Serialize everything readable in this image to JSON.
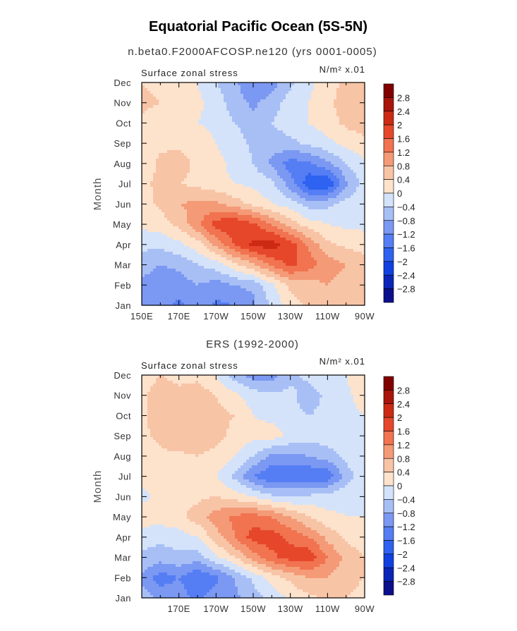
{
  "title": "Equatorial Pacific Ocean (5S-5N)",
  "colormap": {
    "levels": [
      -2.8,
      -2.4,
      -2,
      -1.6,
      -1.2,
      -0.8,
      -0.4,
      0,
      0.4,
      0.8,
      1.2,
      1.6,
      2,
      2.4,
      2.8
    ],
    "labels": [
      "−2.8",
      "−2.4",
      "−2",
      "−1.6",
      "−1.2",
      "−0.8",
      "−0.4",
      "0",
      "0.4",
      "0.8",
      "1.2",
      "1.6",
      "2",
      "2.4",
      "2.8"
    ],
    "colors": [
      "#0c0f8a",
      "#0a25b8",
      "#1040e0",
      "#2e62f0",
      "#557ef4",
      "#7b98f2",
      "#a8bff6",
      "#d4e3fa",
      "#fde2cc",
      "#f8c4a6",
      "#f49a77",
      "#f17350",
      "#e6472b",
      "#cc2a12",
      "#a8150a",
      "#800000"
    ]
  },
  "chart_data": [
    {
      "type": "heatmap",
      "name": "model",
      "subtitle": "n.beta0.F2000AFCOSP.ne120 (yrs 0001-0005)",
      "left_annotation": "Surface zonal stress",
      "right_annotation": "N/m² x.01",
      "ylabel": "Month",
      "xlabel": "",
      "x_tick_labels": [
        "150E",
        "170E",
        "170W",
        "150W",
        "130W",
        "110W",
        "90W"
      ],
      "x_tick_lon": [
        150,
        170,
        190,
        210,
        230,
        250,
        270
      ],
      "y_tick_labels": [
        "Jan",
        "Feb",
        "Mar",
        "Apr",
        "May",
        "Jun",
        "Jul",
        "Aug",
        "Sep",
        "Oct",
        "Nov",
        "Dec"
      ],
      "x_range": [
        150,
        270
      ],
      "y_range": [
        1,
        12
      ],
      "lon_grid": [
        150,
        160,
        170,
        180,
        190,
        200,
        210,
        220,
        230,
        240,
        250,
        260,
        270
      ],
      "month_grid": [
        1,
        2,
        3,
        4,
        5,
        6,
        7,
        8,
        9,
        10,
        11,
        12
      ],
      "values": [
        [
          -0.9,
          -1.0,
          -1.3,
          -0.9,
          -1.3,
          -1.2,
          -0.9,
          -0.3,
          0.2,
          0.5,
          0.6,
          0.5,
          0.4
        ],
        [
          -0.9,
          -1.1,
          -1.0,
          -0.8,
          -1.0,
          -0.8,
          -0.7,
          -0.1,
          0.5,
          0.6,
          0.8,
          0.6,
          0.5
        ],
        [
          -0.6,
          -0.8,
          -0.7,
          -0.4,
          -0.2,
          0.3,
          0.7,
          1.3,
          1.7,
          1.4,
          1.0,
          0.8,
          0.6
        ],
        [
          -0.3,
          -0.3,
          -0.1,
          0.2,
          0.9,
          1.6,
          2.1,
          2.2,
          1.8,
          1.1,
          0.5,
          0.3,
          0.2
        ],
        [
          0.1,
          0.2,
          0.5,
          1.1,
          1.8,
          2.0,
          1.7,
          1.2,
          0.6,
          0.2,
          0.0,
          -0.1,
          -0.1
        ],
        [
          0.2,
          0.5,
          0.8,
          0.9,
          0.9,
          0.6,
          0.3,
          0.0,
          -0.2,
          -0.6,
          -0.5,
          -0.2,
          -0.1
        ],
        [
          0.3,
          0.5,
          0.4,
          0.3,
          0.1,
          0.0,
          -0.1,
          -0.3,
          -1.0,
          -1.9,
          -2.0,
          -0.9,
          -0.2
        ],
        [
          0.1,
          0.5,
          0.6,
          0.3,
          0.1,
          -0.1,
          -0.4,
          -0.9,
          -1.4,
          -1.3,
          -0.9,
          -0.4,
          -0.1
        ],
        [
          0.1,
          0.3,
          0.3,
          0.2,
          0.0,
          -0.2,
          -0.5,
          -0.6,
          -0.5,
          -0.3,
          -0.1,
          0.1,
          0.3
        ],
        [
          0.3,
          0.2,
          0.1,
          0.0,
          -0.1,
          -0.4,
          -0.6,
          -0.4,
          -0.2,
          0.0,
          0.2,
          0.5,
          0.6
        ],
        [
          0.5,
          0.4,
          0.3,
          0.1,
          -0.2,
          -0.6,
          -0.9,
          -0.6,
          -0.2,
          0.0,
          0.3,
          0.6,
          0.6
        ],
        [
          0.4,
          0.3,
          0.2,
          0.0,
          -0.4,
          -0.7,
          -1.2,
          -1.0,
          -0.5,
          -0.1,
          0.2,
          0.5,
          0.4
        ]
      ],
      "colorbar_labels": [
        "2.8",
        "2.4",
        "2",
        "1.6",
        "1.2",
        "0.8",
        "0.4",
        "0",
        "−0.4",
        "−0.8",
        "−1.2",
        "−1.6",
        "−2",
        "−2.4",
        "−2.8"
      ]
    },
    {
      "type": "heatmap",
      "name": "observations",
      "subtitle": "ERS (1992-2000)",
      "left_annotation": "Surface zonal stress",
      "right_annotation": "N/m² x.01",
      "ylabel": "Month",
      "xlabel": "",
      "x_tick_labels": [
        "170E",
        "170W",
        "150W",
        "130W",
        "110W",
        "90W"
      ],
      "x_tick_lon": [
        170,
        190,
        210,
        230,
        250,
        270
      ],
      "y_tick_labels": [
        "Jan",
        "Feb",
        "Mar",
        "Apr",
        "May",
        "Jun",
        "Jul",
        "Aug",
        "Sep",
        "Oct",
        "Nov",
        "Dec"
      ],
      "x_range": [
        150,
        270
      ],
      "y_range": [
        1,
        12
      ],
      "lon_grid": [
        150,
        160,
        170,
        180,
        190,
        200,
        210,
        220,
        230,
        240,
        250,
        260,
        270
      ],
      "month_grid": [
        1,
        2,
        3,
        4,
        5,
        6,
        7,
        8,
        9,
        10,
        11,
        12
      ],
      "values": [
        [
          -0.6,
          -0.9,
          -1.0,
          -1.3,
          -1.0,
          -0.9,
          -0.6,
          -0.3,
          0.1,
          0.3,
          0.5,
          0.4,
          0.3
        ],
        [
          -0.9,
          -1.4,
          -1.2,
          -1.6,
          -1.3,
          -0.8,
          -0.3,
          0.2,
          0.5,
          0.8,
          0.8,
          0.5,
          0.4
        ],
        [
          -0.5,
          -0.6,
          -0.5,
          -0.6,
          -0.1,
          0.4,
          1.0,
          1.5,
          1.8,
          1.9,
          1.2,
          0.7,
          0.4
        ],
        [
          -0.2,
          -0.3,
          -0.2,
          0.0,
          0.6,
          1.2,
          1.8,
          1.8,
          1.5,
          1.2,
          0.7,
          0.3,
          0.1
        ],
        [
          0.2,
          0.2,
          0.3,
          0.6,
          1.0,
          1.3,
          1.4,
          1.2,
          0.8,
          0.4,
          0.1,
          0.0,
          0.0
        ],
        [
          -0.1,
          0.1,
          0.2,
          0.3,
          0.4,
          0.2,
          0.0,
          -0.3,
          -0.4,
          -0.3,
          -0.2,
          -0.1,
          0.0
        ],
        [
          0.1,
          0.2,
          0.3,
          0.2,
          0.0,
          -0.5,
          -1.2,
          -1.6,
          -1.5,
          -1.6,
          -1.5,
          -0.6,
          -0.1
        ],
        [
          0.2,
          0.3,
          0.3,
          0.4,
          0.3,
          0.0,
          -0.4,
          -0.9,
          -0.9,
          -0.8,
          -0.6,
          -0.3,
          -0.1
        ],
        [
          0.3,
          0.5,
          0.8,
          0.6,
          0.5,
          0.3,
          0.1,
          0.2,
          -0.1,
          -0.2,
          -0.2,
          -0.1,
          0.0
        ],
        [
          0.3,
          0.7,
          0.6,
          0.6,
          0.5,
          0.4,
          0.0,
          -0.1,
          -0.3,
          -0.4,
          -0.3,
          -0.1,
          0.0
        ],
        [
          0.3,
          0.6,
          0.5,
          0.6,
          0.4,
          0.1,
          -0.2,
          -0.3,
          -0.3,
          -0.6,
          -0.3,
          -0.1,
          0.2
        ],
        [
          0.2,
          0.4,
          0.3,
          0.3,
          0.0,
          -0.6,
          -1.0,
          -1.0,
          -0.5,
          -0.3,
          -0.1,
          0.0,
          0.3
        ]
      ],
      "colorbar_labels": [
        "2.8",
        "2.4",
        "2",
        "1.6",
        "1.2",
        "0.8",
        "0.4",
        "0",
        "−0.4",
        "−0.8",
        "−1.2",
        "−1.6",
        "−2",
        "−2.4",
        "−2.8"
      ]
    }
  ]
}
